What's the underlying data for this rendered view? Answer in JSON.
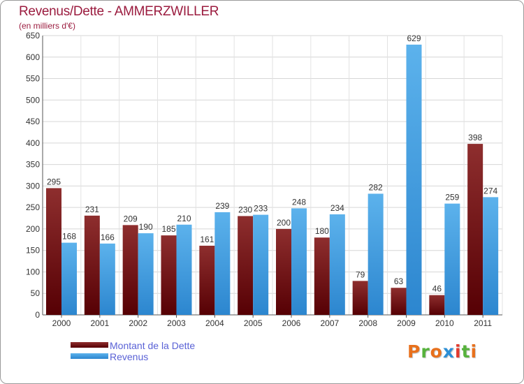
{
  "title": "Revenus/Dette - AMMERZWILLER",
  "subtitle": "(en milliers d'€)",
  "legend": [
    {
      "label": "Montant de la Dette",
      "color": "#6b0f12"
    },
    {
      "label": "Revenus",
      "color": "#3d9be0"
    }
  ],
  "logo": {
    "text": "Proxiti",
    "colors": [
      "#e8701c",
      "#56b23c",
      "#e8701c",
      "#2c8fd6",
      "#e23a2d",
      "#56b23c",
      "#e8701c"
    ]
  },
  "chart_data": {
    "type": "bar",
    "categories": [
      "2000",
      "2001",
      "2002",
      "2003",
      "2004",
      "2005",
      "2006",
      "2007",
      "2008",
      "2009",
      "2010",
      "2011"
    ],
    "series": [
      {
        "name": "Montant de la Dette",
        "color": "#6b0f12",
        "values": [
          295,
          231,
          209,
          185,
          161,
          230,
          200,
          180,
          79,
          63,
          46,
          398
        ]
      },
      {
        "name": "Revenus",
        "color": "#3d9be0",
        "values": [
          168,
          166,
          190,
          210,
          239,
          233,
          248,
          234,
          282,
          629,
          259,
          274
        ]
      }
    ],
    "ylim": [
      0,
      650
    ],
    "yticks": [
      0,
      50,
      100,
      150,
      200,
      250,
      300,
      350,
      400,
      450,
      500,
      550,
      600,
      650
    ],
    "xlabel": "",
    "ylabel": "",
    "grid": true,
    "data_labels": true,
    "legend_position": "bottom-left"
  }
}
